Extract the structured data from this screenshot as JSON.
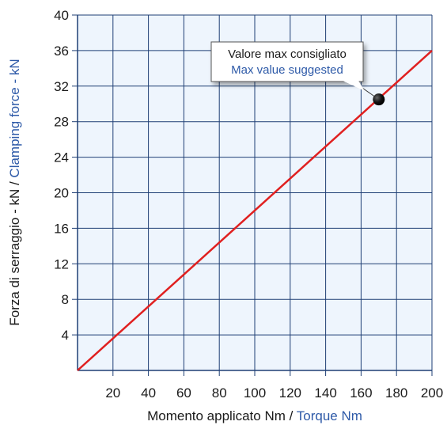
{
  "chart_data": {
    "type": "line",
    "xlim": [
      0,
      200
    ],
    "ylim": [
      0,
      40
    ],
    "x_ticks": [
      20,
      40,
      60,
      80,
      100,
      120,
      140,
      160,
      180,
      200
    ],
    "y_ticks": [
      4,
      8,
      12,
      16,
      20,
      24,
      28,
      32,
      36,
      40
    ],
    "grid": true,
    "series": [
      {
        "x": [
          0,
          200
        ],
        "y": [
          0,
          36
        ],
        "color": "#e02020"
      }
    ],
    "xlabel": {
      "part1": "Momento applicato Nm / ",
      "part2": "Torque Nm"
    },
    "ylabel": {
      "part1": "Forza di serraggio - kN / ",
      "part2": "Clamping force - kN"
    },
    "annotation": {
      "line1": "Valore max consigliato",
      "line2": "Max value suggested",
      "x": 170,
      "y": 30.5
    }
  },
  "colors": {
    "plot_background": "#eef5fd",
    "grid": "#1f3f75",
    "axis": "#1f3f75",
    "line": "#e02020",
    "label_blue": "#2e5aa8",
    "point": "#111111"
  }
}
